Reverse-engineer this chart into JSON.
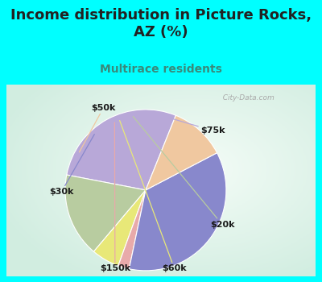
{
  "title": "Income distribution in Picture Rocks,\nAZ (%)",
  "subtitle": "Multirace residents",
  "slices": [
    {
      "label": "$75k",
      "value": 25,
      "color": "#b8a8d8"
    },
    {
      "label": "$20k",
      "value": 15,
      "color": "#b8cca0"
    },
    {
      "label": "$60k",
      "value": 5,
      "color": "#e8e878"
    },
    {
      "label": "$150k",
      "value": 2,
      "color": "#e8aaaa"
    },
    {
      "label": "$30k",
      "value": 32,
      "color": "#8888cc"
    },
    {
      "label": "$50k",
      "value": 10,
      "color": "#f0c8a0"
    }
  ],
  "startangle": 68,
  "bg_cyan": "#00ffff",
  "chart_bg_colors": [
    "#e8f5ee",
    "#d0ece0"
  ],
  "title_color": "#222222",
  "title_fontsize": 13,
  "subtitle_color": "#3a8a7a",
  "subtitle_fontsize": 10,
  "label_fontsize": 8,
  "watermark": "  City-Data.com",
  "watermark_color": "#aaaaaa"
}
